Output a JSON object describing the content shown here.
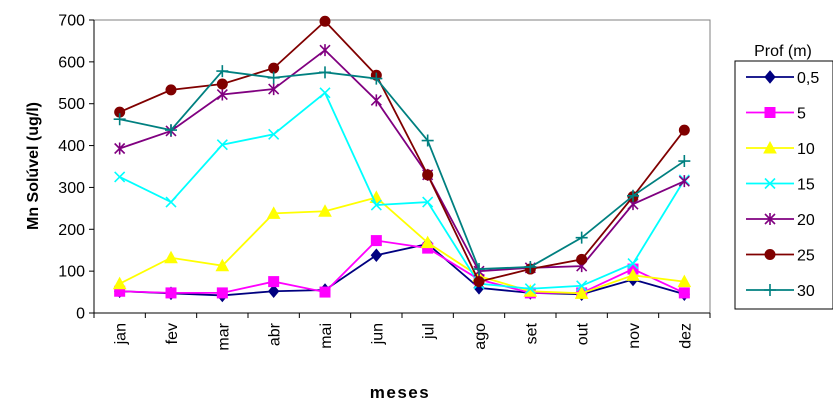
{
  "chart_data": {
    "type": "line",
    "title": "",
    "xlabel": "meses",
    "ylabel": "Mn Solúvel (ug/l)",
    "ylim": [
      0,
      700
    ],
    "yticks": [
      0,
      100,
      200,
      300,
      400,
      500,
      600,
      700
    ],
    "categories": [
      "jan",
      "fev",
      "mar",
      "abr",
      "mai",
      "jun",
      "jul",
      "ago",
      "set",
      "out",
      "nov",
      "dez"
    ],
    "legend_title": "Prof (m)",
    "legend_position": "right",
    "grid": false,
    "series": [
      {
        "name": "0,5",
        "color": "#000080",
        "marker": "diamond",
        "values": [
          52,
          47,
          42,
          52,
          55,
          138,
          165,
          60,
          48,
          45,
          80,
          45
        ]
      },
      {
        "name": "5",
        "color": "#FF00FF",
        "marker": "square",
        "values": [
          52,
          48,
          48,
          75,
          50,
          173,
          155,
          80,
          48,
          48,
          105,
          48
        ]
      },
      {
        "name": "10",
        "color": "#FFFF00",
        "marker": "triangle",
        "values": [
          70,
          132,
          113,
          238,
          243,
          276,
          168,
          88,
          52,
          47,
          90,
          75
        ]
      },
      {
        "name": "15",
        "color": "#00FFFF",
        "marker": "x",
        "values": [
          325,
          265,
          402,
          427,
          526,
          258,
          265,
          70,
          58,
          65,
          118,
          318
        ]
      },
      {
        "name": "20",
        "color": "#800080",
        "marker": "star",
        "values": [
          393,
          435,
          522,
          535,
          628,
          508,
          330,
          100,
          108,
          112,
          260,
          315
        ]
      },
      {
        "name": "25",
        "color": "#800000",
        "marker": "circle",
        "values": [
          480,
          533,
          547,
          585,
          697,
          568,
          330,
          75,
          105,
          128,
          278,
          437
        ]
      },
      {
        "name": "30",
        "color": "#008080",
        "marker": "plus",
        "values": [
          463,
          437,
          578,
          562,
          575,
          560,
          412,
          105,
          110,
          180,
          280,
          363
        ]
      }
    ]
  }
}
